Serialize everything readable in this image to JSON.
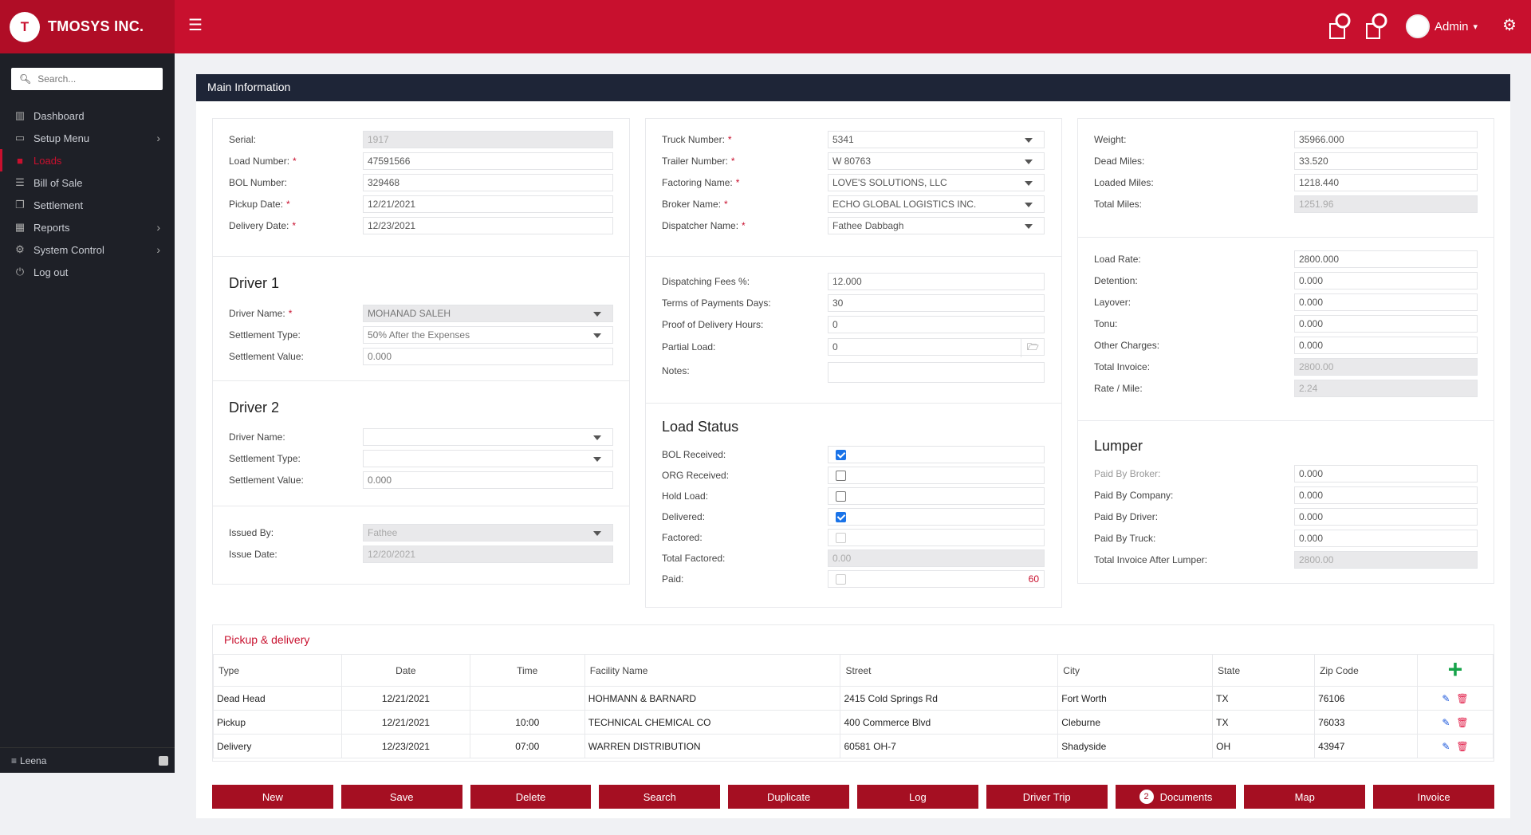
{
  "app": {
    "brand": "TMOSYS INC.",
    "logo_glyph": "T",
    "admin_label": "Admin"
  },
  "sidebar": {
    "search_placeholder": "Search...",
    "items": [
      {
        "label": "Dashboard",
        "icon": "chart-icon"
      },
      {
        "label": "Setup Menu",
        "icon": "monitor-icon"
      },
      {
        "label": "Loads",
        "icon": "truck-icon"
      },
      {
        "label": "Bill of Sale",
        "icon": "list-icon"
      },
      {
        "label": "Settlement",
        "icon": "copy-icon"
      },
      {
        "label": "Reports",
        "icon": "table-icon"
      },
      {
        "label": "System Control",
        "icon": "gear-icon"
      },
      {
        "label": "Log out",
        "icon": "power-icon"
      }
    ],
    "footer": "Leena"
  },
  "main": {
    "title": "Main Information",
    "load": {
      "serial_label": "Serial:",
      "serial": "1917",
      "load_number_label": "Load Number:",
      "load_number": "47591566",
      "bol_label": "BOL Number:",
      "bol": "329468",
      "pickup_label": "Pickup Date:",
      "pickup": "12/21/2021",
      "delivery_label": "Delivery Date:",
      "delivery": "12/23/2021"
    },
    "driver1": {
      "title": "Driver 1",
      "name_label": "Driver Name:",
      "name": "MOHANAD SALEH",
      "type_label": "Settlement Type:",
      "type": "50% After the Expenses",
      "value_label": "Settlement Value:",
      "value": "0.000"
    },
    "driver2": {
      "title": "Driver 2",
      "name_label": "Driver Name:",
      "name": "",
      "type_label": "Settlement Type:",
      "type": "",
      "value_label": "Settlement Value:",
      "value": "0.000"
    },
    "issued": {
      "by_label": "Issued By:",
      "by": "Fathee",
      "date_label": "Issue Date:",
      "date": "12/20/2021"
    },
    "truck": {
      "truck_label": "Truck Number:",
      "truck": "5341",
      "trailer_label": "Trailer Number:",
      "trailer": "W 80763",
      "factoring_label": "Factoring Name:",
      "factoring": "LOVE'S SOLUTIONS, LLC",
      "broker_label": "Broker Name:",
      "broker": "ECHO GLOBAL LOGISTICS INC.",
      "dispatcher_label": "Dispatcher Name:",
      "dispatcher": "Fathee Dabbagh"
    },
    "fees": {
      "disp_label": "Dispatching Fees %:",
      "disp": "12.000",
      "terms_label": "Terms of Payments Days:",
      "terms": "30",
      "pod_label": "Proof of Delivery Hours:",
      "pod": "0",
      "partial_label": "Partial Load:",
      "partial": "0",
      "notes_label": "Notes:",
      "notes": ""
    },
    "status": {
      "title": "Load Status",
      "bol_label": "BOL Received:",
      "bol": true,
      "org_label": "ORG Received:",
      "org": false,
      "hold_label": "Hold Load:",
      "hold": false,
      "delivered_label": "Delivered:",
      "delivered": true,
      "factored_label": "Factored:",
      "factored": false,
      "total_factored_label": "Total Factored:",
      "total_factored": "0.00",
      "paid_label": "Paid:",
      "paid": false,
      "paid_value": "60"
    },
    "weight": {
      "weight_label": "Weight:",
      "weight": "35966.000",
      "dead_label": "Dead Miles:",
      "dead": "33.520",
      "loaded_label": "Loaded Miles:",
      "loaded": "1218.440",
      "total_label": "Total Miles:",
      "total": "1251.96"
    },
    "rate": {
      "rate_label": "Load Rate:",
      "rate": "2800.000",
      "detention_label": "Detention:",
      "detention": "0.000",
      "layover_label": "Layover:",
      "layover": "0.000",
      "tonu_label": "Tonu:",
      "tonu": "0.000",
      "other_label": "Other Charges:",
      "other": "0.000",
      "invoice_label": "Total Invoice:",
      "invoice": "2800.00",
      "permile_label": "Rate / Mile:",
      "permile": "2.24"
    },
    "lumper": {
      "title": "Lumper",
      "broker_label": "Paid By Broker:",
      "broker": "0.000",
      "company_label": "Paid By Company:",
      "company": "0.000",
      "driver_label": "Paid By Driver:",
      "driver": "0.000",
      "truck_label": "Paid By Truck:",
      "truck": "0.000",
      "after_label": "Total Invoice After Lumper:",
      "after": "2800.00"
    }
  },
  "pickup_delivery": {
    "title": "Pickup & delivery",
    "columns": [
      "Type",
      "Date",
      "Time",
      "Facility Name",
      "Street",
      "City",
      "State",
      "Zip Code"
    ],
    "rows": [
      [
        "Dead Head",
        "12/21/2021",
        "",
        "HOHMANN & BARNARD",
        "2415 Cold Springs Rd",
        "Fort Worth",
        "TX",
        "76106"
      ],
      [
        "Pickup",
        "12/21/2021",
        "10:00",
        "TECHNICAL CHEMICAL CO",
        "400 Commerce Blvd",
        "Cleburne",
        "TX",
        "76033"
      ],
      [
        "Delivery",
        "12/23/2021",
        "07:00",
        "WARREN DISTRIBUTION",
        "60581 OH-7",
        "Shadyside",
        "OH",
        "43947"
      ]
    ]
  },
  "buttons": {
    "new": "New",
    "save": "Save",
    "delete": "Delete",
    "search": "Search",
    "duplicate": "Duplicate",
    "log": "Log",
    "driver_trip": "Driver Trip",
    "documents_count": "2",
    "documents": "Documents",
    "map": "Map",
    "invoice": "Invoice"
  },
  "colors": {
    "brand": "#c8102e",
    "sidebar": "#1e2027",
    "header": "#1e2537",
    "button": "#a50f22"
  }
}
